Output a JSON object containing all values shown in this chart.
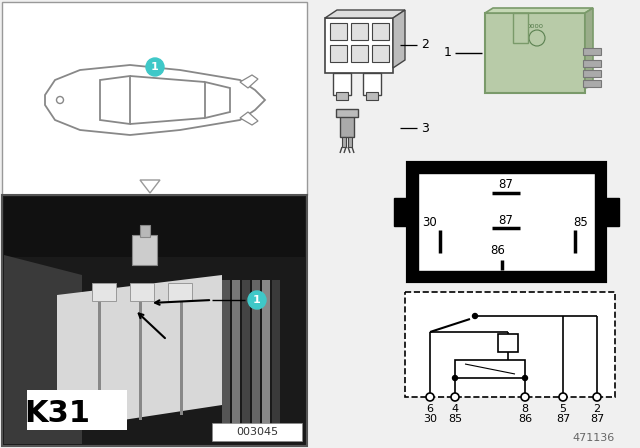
{
  "bg_color": "#f0f0f0",
  "part_number": "471136",
  "photo_label": "003045",
  "k31_label": "K31",
  "teal_color": "#3fc8c8",
  "car_outline_color": "#888888",
  "relay_green": "#b8cba8",
  "relay_green_dark": "#9aad8a",
  "relay_green_top": "#c5d8b5",
  "connector_gray": "#cccccc",
  "pin_top_labels": [
    "6",
    "4",
    "8",
    "5",
    "2"
  ],
  "pin_bot_labels": [
    "30",
    "85",
    "86",
    "87",
    "87"
  ]
}
